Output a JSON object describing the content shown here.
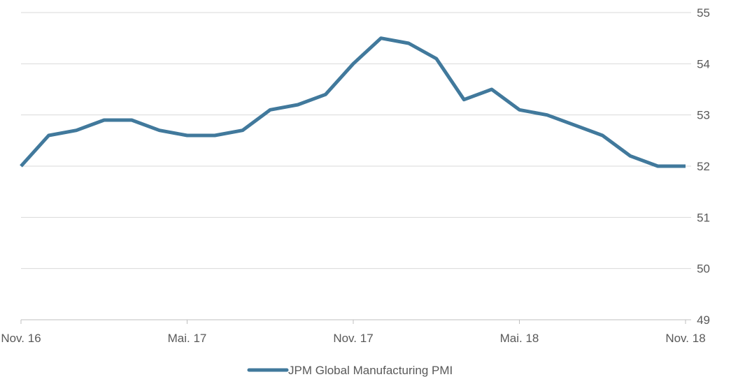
{
  "chart_data": {
    "type": "line",
    "title": "",
    "xlabel": "",
    "ylabel": "",
    "ylim": [
      49,
      55
    ],
    "yticks": [
      49,
      50,
      51,
      52,
      53,
      54,
      55
    ],
    "y_axis_side": "right",
    "grid": true,
    "legend_placement": "bottom-center",
    "x_tick_labels": [
      "Nov. 16",
      "Mai. 17",
      "Nov. 17",
      "Mai. 18",
      "Nov. 18"
    ],
    "x_tick_indices": [
      0,
      6,
      12,
      18,
      24
    ],
    "series": [
      {
        "name": "JPM Global Manufacturing PMI",
        "color": "#41799c",
        "values": [
          52.0,
          52.6,
          52.7,
          52.9,
          52.9,
          52.7,
          52.6,
          52.6,
          52.7,
          53.1,
          53.2,
          53.4,
          54.0,
          54.5,
          54.4,
          54.1,
          53.3,
          53.5,
          53.1,
          53.0,
          52.8,
          52.6,
          52.2,
          52.0,
          52.0
        ]
      }
    ]
  }
}
